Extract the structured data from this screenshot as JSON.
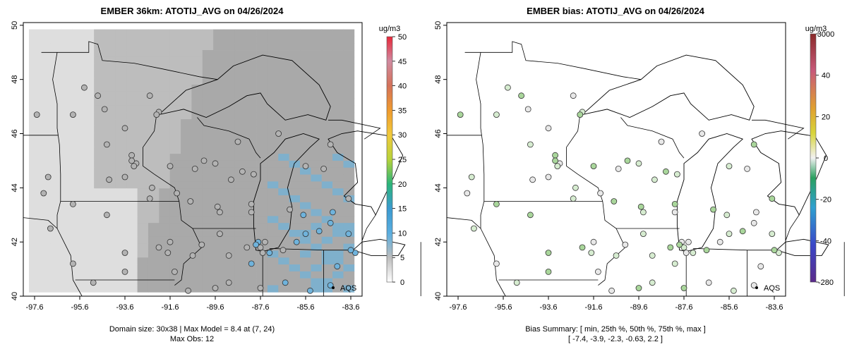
{
  "colors": {
    "grid_fill_light": "#dedede",
    "grid_fill_mid": "#bdbdbd",
    "grid_fill_dark": "#a9a9a9",
    "grid_fill_blue": "#7fb0cc",
    "site_gray": "#b3b3b3",
    "site_blue": "#6fb3dc",
    "site_green_light": "#d6ecd0",
    "site_green": "#a9d69b",
    "site_white": "#e8e8e8"
  },
  "left_panel": {
    "title": "EMBER 36km: ATOTIJ_AVG on 04/26/2024",
    "caption_line1": "Domain size: 30x38 | Max Model = 8.4 at (7, 24)",
    "caption_line2": "Max Obs: 12",
    "legend_unit": "ug/m3",
    "legend_ticks": [
      "50",
      "45",
      "40",
      "35",
      "30",
      "25",
      "20",
      "15",
      "10",
      "5",
      "0"
    ],
    "network_label": "AQS"
  },
  "right_panel": {
    "title": "EMBER bias: ATOTIJ_AVG on 04/26/2024",
    "caption_line1": "Bias Summary: [ min, 25th %, 50th %, 75th %, max ]",
    "caption_line2": "[ -7.4,   -3.9,   -2.3,   -0.63,   2.2 ]",
    "legend_unit": "ug/m3",
    "legend_ticks": [
      "3000",
      "40",
      "20",
      "0",
      "-20",
      "-40",
      "-280"
    ],
    "network_label": "AQS"
  },
  "axes": {
    "x_ticks": [
      "-97.6",
      "-95.6",
      "-93.6",
      "-91.6",
      "-89.6",
      "-87.6",
      "-85.6",
      "-83.6"
    ],
    "y_ticks": [
      "40",
      "42",
      "44",
      "46",
      "48",
      "50"
    ]
  },
  "chart_data": [
    {
      "type": "heatmap",
      "title": "EMBER 36km: ATOTIJ_AVG on 04/26/2024",
      "xlim": [
        -98.1,
        -83.1
      ],
      "ylim": [
        40.0,
        50.1
      ],
      "colorbar": {
        "unit": "ug/m3",
        "range": [
          0,
          50
        ]
      },
      "site_overlay": "AQS",
      "max_model": 8.4,
      "max_obs": 12
    },
    {
      "type": "scatter",
      "title": "EMBER bias: ATOTIJ_AVG on 04/26/2024",
      "xlim": [
        -98.1,
        -83.1
      ],
      "ylim": [
        40.0,
        50.1
      ],
      "colorbar": {
        "unit": "ug/m3",
        "ticks": [
          3000,
          40,
          20,
          0,
          -20,
          -40,
          -280
        ]
      },
      "bias_summary": {
        "min": -7.4,
        "p25": -3.9,
        "p50": -2.3,
        "p75": -0.63,
        "max": 2.2
      }
    }
  ]
}
